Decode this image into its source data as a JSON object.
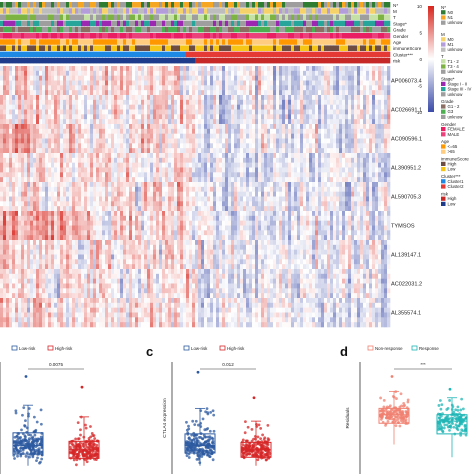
{
  "heatmap": {
    "annotation_tracks": [
      {
        "label": "N*"
      },
      {
        "label": "M"
      },
      {
        "label": "T"
      },
      {
        "label": "Stage*"
      },
      {
        "label": "Grade"
      },
      {
        "label": "Gender"
      },
      {
        "label": "Age"
      },
      {
        "label": "immuneScore"
      },
      {
        "label": "Cluster***"
      },
      {
        "label": "risk"
      }
    ],
    "genes": [
      "AP006073.4",
      "AC026691.1",
      "AC090596.1",
      "AL390951.2",
      "AL590705.3",
      "TYMSOS",
      "AL139147.1",
      "AC022031.2",
      "AL355574.1"
    ],
    "colorbar": {
      "ticks": [
        "10",
        "5",
        "0",
        "-5",
        "-10"
      ],
      "high_color": "#d7261e",
      "mid_color": "#ffffff",
      "low_color": "#3b4ba8"
    }
  },
  "legend": {
    "groups": [
      {
        "title": "N*",
        "items": [
          {
            "label": "N0",
            "color": "#2e7d32"
          },
          {
            "label": "N1",
            "color": "#f5a623"
          },
          {
            "label": "unknow",
            "color": "#9e9e9e"
          }
        ]
      },
      {
        "title": "M",
        "items": [
          {
            "label": "M0",
            "color": "#f6d36a"
          },
          {
            "label": "M1",
            "color": "#b39ddb"
          },
          {
            "label": "unknow",
            "color": "#bdbdbd"
          }
        ]
      },
      {
        "title": "T",
        "items": [
          {
            "label": "T1 - 2",
            "color": "#c5e1a5"
          },
          {
            "label": "T3 - 4",
            "color": "#7cb342"
          },
          {
            "label": "unknow",
            "color": "#9e9e9e"
          }
        ]
      },
      {
        "title": "Stage*",
        "items": [
          {
            "label": "Stage I - II",
            "color": "#9c27b0"
          },
          {
            "label": "Stage III - IV",
            "color": "#26a69a"
          },
          {
            "label": "unknow",
            "color": "#9e9e9e"
          }
        ]
      },
      {
        "title": "Grade",
        "items": [
          {
            "label": "G1 - 2",
            "color": "#8d6e63"
          },
          {
            "label": "G3",
            "color": "#4caf50"
          },
          {
            "label": "unknow",
            "color": "#9e9e9e"
          }
        ]
      },
      {
        "title": "Gender",
        "items": [
          {
            "label": "FEMALE",
            "color": "#e91e63"
          },
          {
            "label": "MALE",
            "color": "#ec407a"
          }
        ]
      },
      {
        "title": "Age",
        "items": [
          {
            "label": "<=65",
            "color": "#ff9800"
          },
          {
            "label": ">65",
            "color": "#ffcc80"
          }
        ]
      },
      {
        "title": "immuneScore",
        "items": [
          {
            "label": "High",
            "color": "#6d4c41"
          },
          {
            "label": "Low",
            "color": "#f5c518"
          }
        ]
      },
      {
        "title": "Cluster***",
        "items": [
          {
            "label": "Cluster1",
            "color": "#1e88e5"
          },
          {
            "label": "Cluster2",
            "color": "#e53935"
          }
        ]
      },
      {
        "title": "risk",
        "items": [
          {
            "label": "High",
            "color": "#c62828"
          },
          {
            "label": "Low",
            "color": "#1e3a8a"
          }
        ]
      }
    ]
  },
  "panels": [
    {
      "letter": "",
      "legend": [
        {
          "label": "Low-risk",
          "color": "#2c5aa0"
        },
        {
          "label": "High-risk",
          "color": "#d62728"
        }
      ],
      "pvalue": "0.0075",
      "ylabel": "",
      "groups": [
        {
          "name": "Low-risk",
          "color": "#2c5aa0",
          "n": 200,
          "median": 0.95,
          "q1": 0.55,
          "q3": 1.55,
          "wlo": 0.0,
          "whi": 2.85,
          "max": 4.2
        },
        {
          "name": "High-risk",
          "color": "#d62728",
          "n": 200,
          "median": 0.75,
          "q1": 0.35,
          "q3": 1.15,
          "wlo": 0.0,
          "whi": 2.3,
          "max": 3.7
        }
      ]
    },
    {
      "letter": "c",
      "legend": [
        {
          "label": "Low-risk",
          "color": "#2c5aa0"
        },
        {
          "label": "High-risk",
          "color": "#d62728"
        }
      ],
      "pvalue": "0.012",
      "ylabel": "CTLA4 expression",
      "groups": [
        {
          "name": "Low-risk",
          "color": "#2c5aa0",
          "n": 200,
          "median": 0.95,
          "q1": 0.6,
          "q3": 1.5,
          "wlo": 0.0,
          "whi": 2.7,
          "max": 4.4
        },
        {
          "name": "High-risk",
          "color": "#d62728",
          "n": 200,
          "median": 0.75,
          "q1": 0.4,
          "q3": 1.1,
          "wlo": 0.0,
          "whi": 2.1,
          "max": 3.2
        }
      ]
    },
    {
      "letter": "d",
      "legend": [
        {
          "label": "Non-response",
          "color": "#f08070"
        },
        {
          "label": "Response",
          "color": "#1fb5b5"
        }
      ],
      "pvalue": "***",
      "ylabel": "Residuals",
      "groups": [
        {
          "name": "Non-response",
          "color": "#f08070",
          "n": 140,
          "median": 0.5,
          "q1": 0.3,
          "q3": 0.65,
          "wlo": -0.2,
          "whi": 1.05,
          "max": 1.4
        },
        {
          "name": "Response",
          "color": "#1fb5b5",
          "n": 140,
          "median": 0.35,
          "q1": 0.05,
          "q3": 0.5,
          "wlo": -0.5,
          "whi": 0.9,
          "max": 1.1
        }
      ]
    }
  ]
}
